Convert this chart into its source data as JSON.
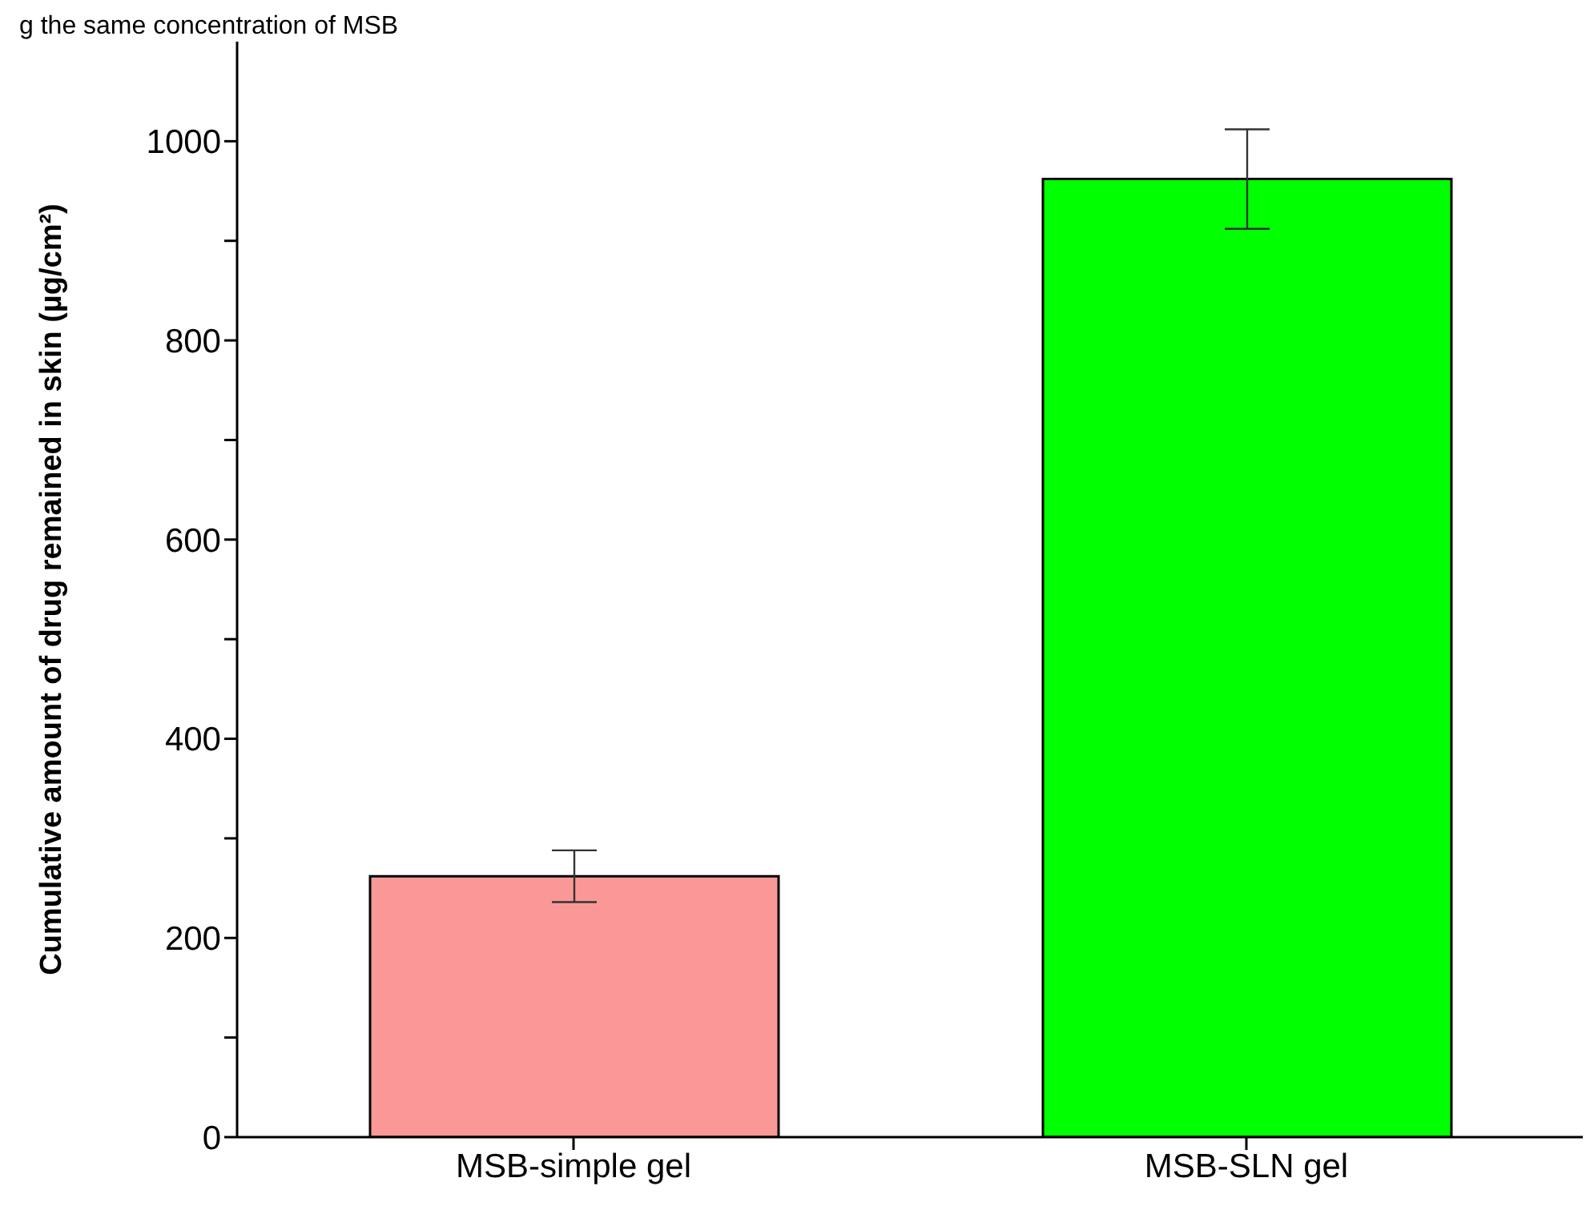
{
  "chart_data": {
    "type": "bar",
    "ylabel": "Cumulative amount of drug remained in skin (µg/cm²)",
    "categories": [
      "MSB-simple gel",
      "MSB-SLN gel"
    ],
    "values": [
      262,
      962
    ],
    "errors": [
      26,
      50
    ],
    "colors": [
      "#fa9898",
      "#00ff00"
    ],
    "ylim": [
      0,
      1100
    ],
    "yticks": [
      0,
      {
        "value": 100,
        "label": null
      },
      200,
      {
        "value": 300,
        "label": null
      },
      400,
      {
        "value": 500,
        "label": null
      },
      600,
      {
        "value": 700,
        "label": null
      },
      800,
      {
        "value": 900,
        "label": null
      },
      1000
    ],
    "grid": false,
    "annotations": [
      "g the same concentration of MSB"
    ]
  }
}
